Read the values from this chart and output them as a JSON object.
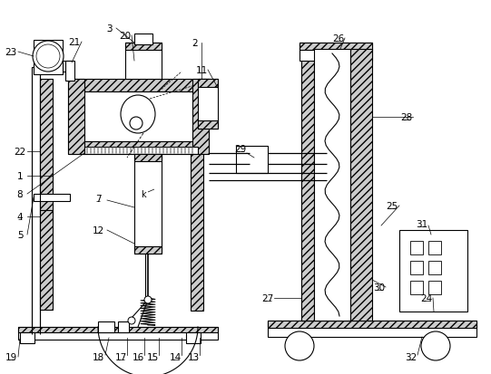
{
  "background_color": "#ffffff",
  "line_color": "#000000",
  "label_fontsize": 7.5,
  "hatch_color": "#555555"
}
